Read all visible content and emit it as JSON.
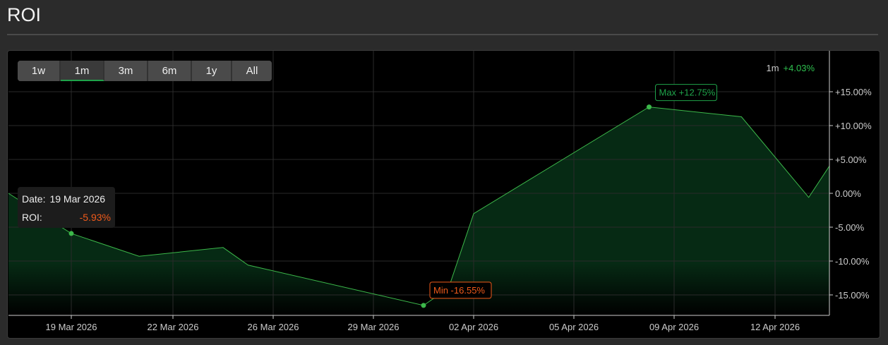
{
  "page": {
    "title": "ROI"
  },
  "range_buttons": [
    {
      "label": "1w",
      "active": false
    },
    {
      "label": "1m",
      "active": true
    },
    {
      "label": "3m",
      "active": false
    },
    {
      "label": "6m",
      "active": false
    },
    {
      "label": "1y",
      "active": false
    },
    {
      "label": "All",
      "active": false
    }
  ],
  "summary": {
    "period": "1m",
    "value": "+4.03%"
  },
  "tooltip": {
    "date_label": "Date:",
    "date": "19 Mar 2026",
    "roi_label": "ROI:",
    "roi": "-5.93%"
  },
  "colors": {
    "line": "#3cb84a",
    "fill": "#062a14",
    "max": "#1fa34a",
    "min": "#f05a1a",
    "grid": "#2a2a2a"
  },
  "chart_data": {
    "type": "area",
    "x": [
      "17 Mar 2026",
      "19 Mar 2026",
      "21 Mar 2026",
      "24 Mar 2026",
      "25 Mar 2026",
      "31 Mar 2026",
      "01 Apr 2026",
      "02 Apr 2026",
      "08 Apr 2026",
      "11 Apr 2026",
      "13 Apr 2026",
      "14 Apr 2026"
    ],
    "y": [
      0.0,
      -5.93,
      -9.3,
      -8.0,
      -10.6,
      -16.55,
      -14.0,
      -3.0,
      12.75,
      11.3,
      -0.6,
      4.03
    ],
    "ylim": [
      -18,
      20.5
    ],
    "yticks": [
      15,
      10,
      5,
      0,
      -5,
      -10,
      -15
    ],
    "ytick_labels": [
      "+15.00%",
      "+10.00%",
      "+5.00%",
      "0.00%",
      "-5.00%",
      "-10.00%",
      "-15.00%"
    ],
    "xticks": [
      "19 Mar 2026",
      "22 Mar 2026",
      "26 Mar 2026",
      "29 Mar 2026",
      "02 Apr 2026",
      "05 Apr 2026",
      "09 Apr 2026",
      "12 Apr 2026"
    ],
    "max_annotation": "Max +12.75%",
    "min_annotation": "Min -16.55%",
    "grid": true,
    "y_axis_position": "right"
  }
}
